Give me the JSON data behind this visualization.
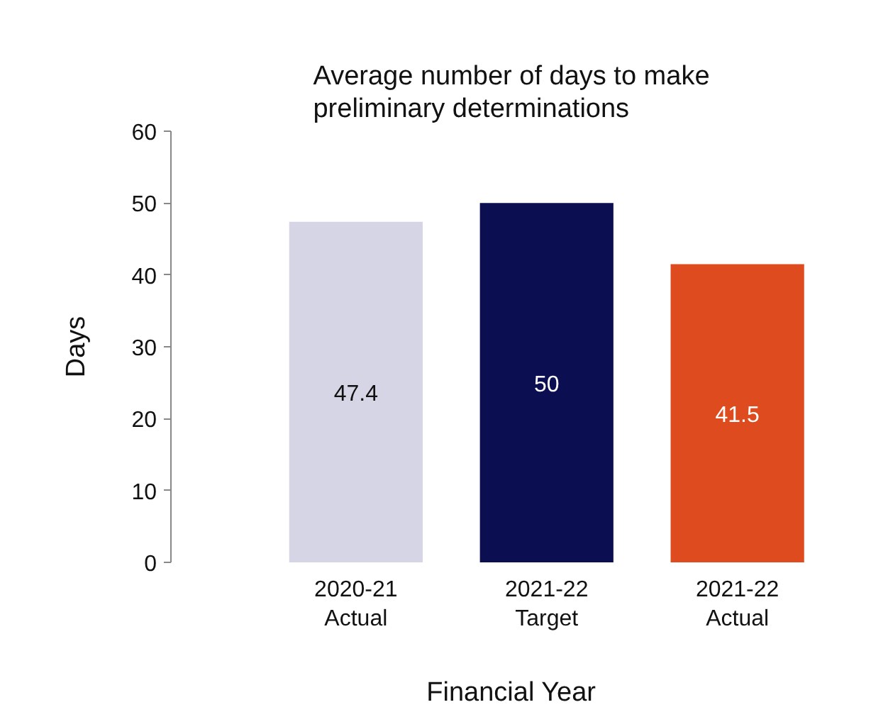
{
  "chart_data": {
    "type": "bar",
    "title": "Average number of days to make\npreliminary determinations",
    "xlabel": "Financial Year",
    "ylabel": "Days",
    "categories": [
      "2020-21\nActual",
      "2021-22\nTarget",
      "2021-22\nActual"
    ],
    "values": [
      47.4,
      50,
      41.5
    ],
    "colors": [
      "#d5d5e5",
      "#0b0f52",
      "#dd4b1e"
    ],
    "ylim": [
      0,
      60
    ],
    "yticks": [
      0,
      10,
      20,
      30,
      40,
      50,
      60
    ],
    "data_labels": true,
    "grid": false
  }
}
